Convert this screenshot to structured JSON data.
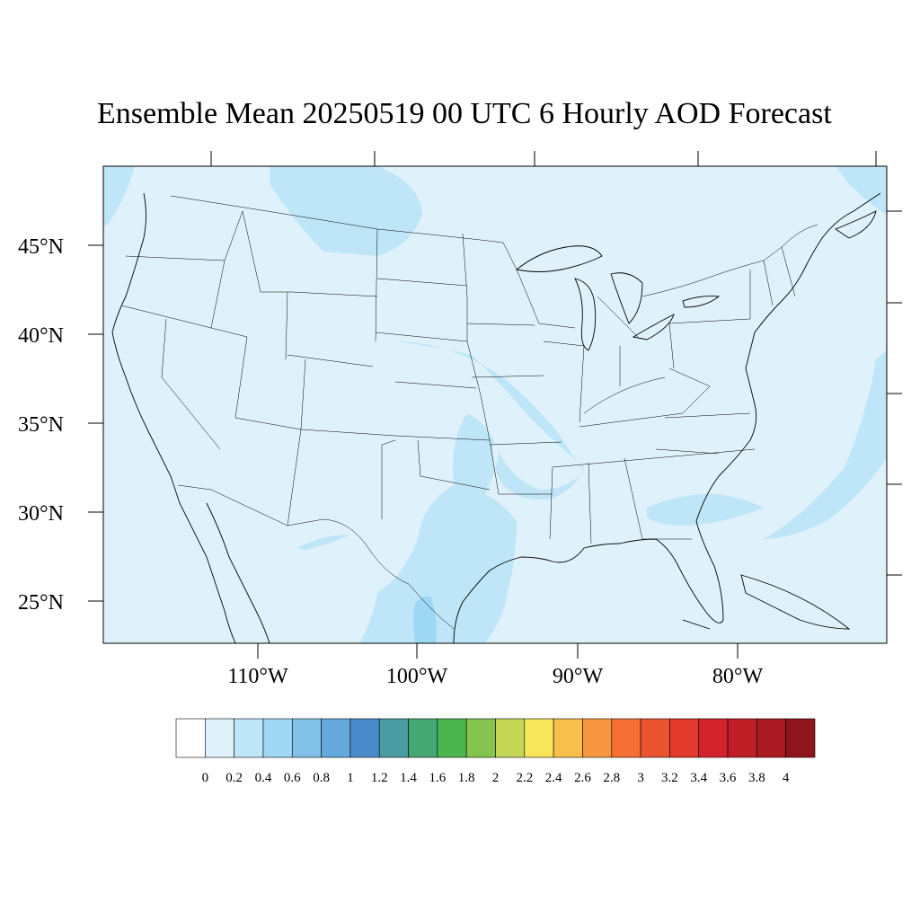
{
  "title": "Ensemble Mean 20250519 00 UTC 6 Hourly AOD Forecast",
  "map": {
    "lat_labels": [
      "45°N",
      "40°N",
      "35°N",
      "30°N",
      "25°N"
    ],
    "lon_labels": [
      "110°W",
      "100°W",
      "90°W",
      "80°W"
    ],
    "ocean_color": "#dff2fb",
    "plume_color_0_4": "#bfe6f8",
    "plume_color_0_6": "#9ed8f5"
  },
  "colorbar": {
    "labels": [
      "0",
      "0.2",
      "0.4",
      "0.6",
      "0.8",
      "1",
      "1.2",
      "1.4",
      "1.6",
      "1.8",
      "2",
      "2.2",
      "2.4",
      "2.6",
      "2.8",
      "3",
      "3.2",
      "3.4",
      "3.6",
      "3.8",
      "4"
    ],
    "colors": [
      "#ffffff",
      "#dff2fb",
      "#bfe6f8",
      "#9ed8f5",
      "#82c1e8",
      "#65a8dc",
      "#4a8ccb",
      "#4a9ba2",
      "#45a874",
      "#4bb64d",
      "#86c54d",
      "#c4d656",
      "#f8e65a",
      "#f8bf4c",
      "#f79840",
      "#f56f35",
      "#eb5330",
      "#e23a2c",
      "#d2222b",
      "#c01e27",
      "#a91a22",
      "#8e151b"
    ]
  }
}
